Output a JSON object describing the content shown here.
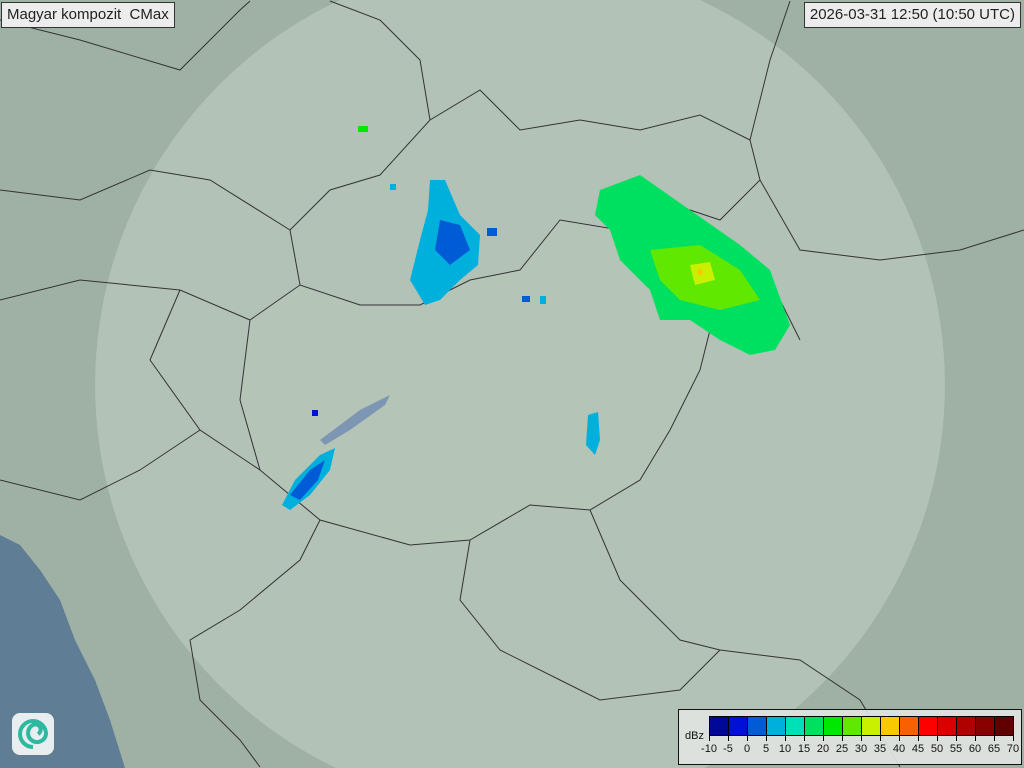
{
  "header": {
    "product_title": "Magyar kompozit  CMax",
    "timestamp": "2026-03-31 12:50 (10:50 UTC)"
  },
  "legend": {
    "unit": "dBz",
    "ticks": [
      "-10",
      "-5",
      "0",
      "5",
      "10",
      "15",
      "20",
      "25",
      "30",
      "35",
      "40",
      "45",
      "50",
      "55",
      "60",
      "65",
      "70"
    ],
    "colors": [
      "#00089a",
      "#0010d6",
      "#005cd6",
      "#00b0dc",
      "#00e0b8",
      "#00e060",
      "#00e800",
      "#60e800",
      "#c8f000",
      "#f8c800",
      "#f86000",
      "#ff0000",
      "#d80000",
      "#b00000",
      "#880000",
      "#600000"
    ]
  },
  "map": {
    "background_color": "#9fb1a4",
    "radar_coverage_color": "#c3d0c6",
    "sea_color": "#5f7d94",
    "border_color": "#333333",
    "logo_icon": "swirl-logo-icon"
  }
}
